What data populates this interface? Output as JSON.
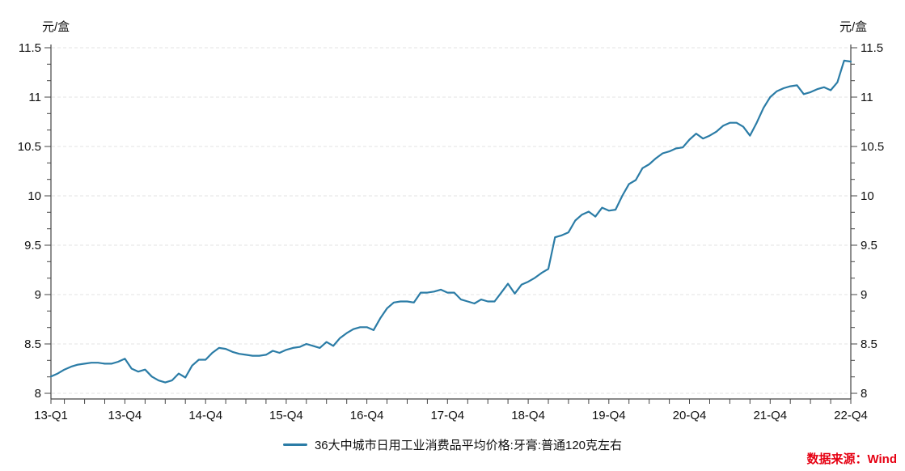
{
  "header": {
    "unit_left": "元/盒",
    "unit_right": "元/盒"
  },
  "legend": {
    "label": "36大中城市日用工业消费品平均价格:牙膏:普通120克左右"
  },
  "footer": {
    "source": "数据来源：Wind"
  },
  "chart_data": {
    "type": "line",
    "title": "",
    "ylabel": "元/盒",
    "series": [
      {
        "name": "36大中城市日用工业消费品平均价格:牙膏:普通120克左右",
        "frequency": "monthly",
        "x_start": "2013-01",
        "x_end": "2022-12",
        "values": [
          8.17,
          8.2,
          8.24,
          8.27,
          8.29,
          8.3,
          8.31,
          8.31,
          8.3,
          8.3,
          8.32,
          8.35,
          8.25,
          8.22,
          8.24,
          8.17,
          8.13,
          8.11,
          8.13,
          8.2,
          8.16,
          8.28,
          8.34,
          8.34,
          8.41,
          8.46,
          8.45,
          8.42,
          8.4,
          8.39,
          8.38,
          8.38,
          8.39,
          8.43,
          8.41,
          8.44,
          8.46,
          8.47,
          8.5,
          8.48,
          8.46,
          8.52,
          8.48,
          8.56,
          8.61,
          8.65,
          8.67,
          8.67,
          8.64,
          8.76,
          8.86,
          8.92,
          8.93,
          8.93,
          8.92,
          9.02,
          9.02,
          9.03,
          9.05,
          9.02,
          9.02,
          8.95,
          8.93,
          8.91,
          8.95,
          8.93,
          8.93,
          9.02,
          9.11,
          9.01,
          9.1,
          9.13,
          9.17,
          9.22,
          9.26,
          9.58,
          9.6,
          9.63,
          9.75,
          9.81,
          9.84,
          9.79,
          9.88,
          9.85,
          9.86,
          10.0,
          10.12,
          10.16,
          10.28,
          10.32,
          10.38,
          10.43,
          10.45,
          10.48,
          10.49,
          10.57,
          10.63,
          10.58,
          10.61,
          10.65,
          10.71,
          10.74,
          10.74,
          10.7,
          10.61,
          10.74,
          10.89,
          11.0,
          11.06,
          11.09,
          11.11,
          11.12,
          11.03,
          11.05,
          11.08,
          11.1,
          11.07,
          11.15,
          11.37,
          11.36
        ]
      }
    ],
    "x_ticks": [
      {
        "i": 0,
        "label": "13-Q1"
      },
      {
        "i": 11,
        "label": "13-Q4"
      },
      {
        "i": 23,
        "label": "14-Q4"
      },
      {
        "i": 35,
        "label": "15-Q4"
      },
      {
        "i": 47,
        "label": "16-Q4"
      },
      {
        "i": 59,
        "label": "17-Q4"
      },
      {
        "i": 71,
        "label": "18-Q4"
      },
      {
        "i": 83,
        "label": "19-Q4"
      },
      {
        "i": 95,
        "label": "20-Q4"
      },
      {
        "i": 107,
        "label": "21-Q4"
      },
      {
        "i": 119,
        "label": "22-Q4"
      }
    ],
    "minor_x_tick_every_months": 3,
    "y_ticks": [
      8,
      8.5,
      9,
      9.5,
      10,
      10.5,
      11,
      11.5
    ],
    "ylim": [
      8,
      11.5
    ],
    "grid": "horizontal-dashed",
    "legend_position": "bottom-center",
    "line_color": "#2b7ca6",
    "source_color": "#e60012",
    "axis_color": "#444444",
    "grid_color": "#e3e3e3"
  }
}
